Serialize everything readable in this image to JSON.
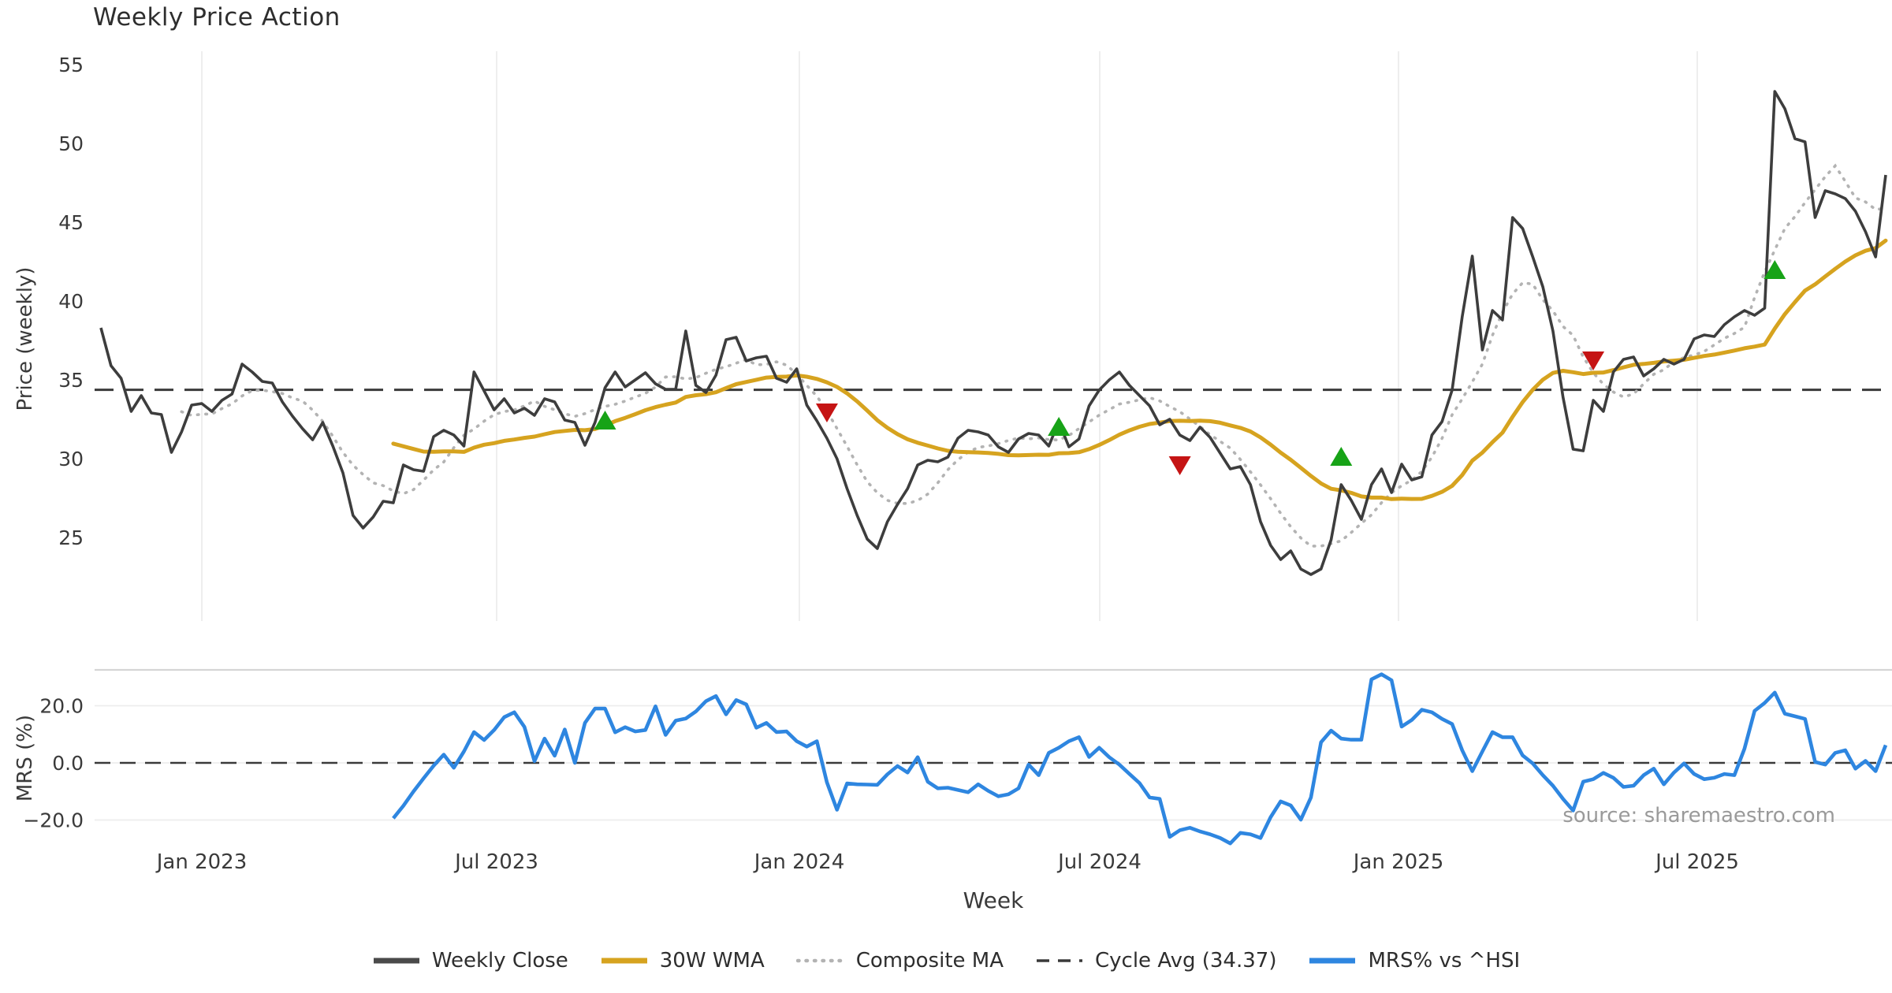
{
  "chart": {
    "title": "Weekly Price Action",
    "source": "source: sharemaestro.com",
    "xlabel": "Week",
    "legend": {
      "items": [
        {
          "label": "Weekly Close",
          "style": "solid",
          "color": "#4a4a4a"
        },
        {
          "label": "30W WMA",
          "style": "solid",
          "color": "#d6a31f"
        },
        {
          "label": "Composite MA",
          "style": "dotted",
          "color": "#b3b3b3"
        },
        {
          "label": "Cycle Avg (34.37)",
          "style": "dashed",
          "color": "#3a3a3a"
        },
        {
          "label": "MRS% vs ^HSI",
          "style": "solid",
          "color": "#2e86e0"
        }
      ]
    }
  },
  "chart_data": {
    "type": "line",
    "title": "Weekly Price Action",
    "xlabel": "Week",
    "x_tick_labels": [
      "Jan 2023",
      "Jul 2023",
      "Jan 2024",
      "Jul 2024",
      "Jan 2025",
      "Jul 2025"
    ],
    "colors": {
      "close": "#3d3d3d",
      "wma": "#d6a31f",
      "composite": "#b3b3b3",
      "cycle_avg": "#3a3a3a",
      "mrs": "#2e86e0",
      "buy_marker": "#17a317",
      "sell_marker": "#c51414",
      "grid": "#ececec",
      "spine": "#d5d5d5",
      "text": "#3a3a3a",
      "subtext": "#9a9a9a"
    },
    "panels": [
      {
        "name": "price",
        "ylabel": "Price (weekly)",
        "yticks": [
          55,
          50,
          45,
          40,
          35,
          30,
          25
        ],
        "ylim": [
          21.5,
          55.8
        ],
        "grid": "vertical-only",
        "cycle_avg": 34.37,
        "series": [
          {
            "name": "Weekly Close",
            "values": [
              38.3,
              35.9,
              35.1,
              33.0,
              34.0,
              32.9,
              32.8,
              30.4,
              31.7,
              33.4,
              33.5,
              33.0,
              33.7,
              34.1,
              36.0,
              35.5,
              34.9,
              34.8,
              33.6,
              32.7,
              31.9,
              31.2,
              32.3,
              30.8,
              29.1,
              26.4,
              25.6,
              26.3,
              27.3,
              27.2,
              29.6,
              29.3,
              29.2,
              31.4,
              31.8,
              31.5,
              30.8,
              35.5,
              34.3,
              33.1,
              33.8,
              32.9,
              33.2,
              32.75,
              33.8,
              33.6,
              32.45,
              32.3,
              30.85,
              32.3,
              34.5,
              35.5,
              34.55,
              35.0,
              35.45,
              34.75,
              34.4,
              34.4,
              38.1,
              34.65,
              34.2,
              35.3,
              37.55,
              37.7,
              36.2,
              36.4,
              36.5,
              35.1,
              34.85,
              35.7,
              33.4,
              32.4,
              31.3,
              30.0,
              28.1,
              26.4,
              24.9,
              24.3,
              26.0,
              27.1,
              28.1,
              29.6,
              29.9,
              29.8,
              30.1,
              31.3,
              31.8,
              31.7,
              31.5,
              30.75,
              30.4,
              31.25,
              31.6,
              31.5,
              30.8,
              32.35,
              30.75,
              31.25,
              33.35,
              34.35,
              35.0,
              35.5,
              34.65,
              34.0,
              33.35,
              32.15,
              32.5,
              31.5,
              31.15,
              32.0,
              31.35,
              30.35,
              29.35,
              29.5,
              28.35,
              26.0,
              24.5,
              23.6,
              24.15,
              23.0,
              22.65,
              23.0,
              24.85,
              28.35,
              27.35,
              26.15,
              28.35,
              29.35,
              27.85,
              29.65,
              28.65,
              28.85,
              31.5,
              32.35,
              34.35,
              39.0,
              42.85,
              36.9,
              39.4,
              38.8,
              45.3,
              44.6,
              42.8,
              40.9,
              38.1,
              33.9,
              30.6,
              30.5,
              33.7,
              33.0,
              35.5,
              36.3,
              36.45,
              35.25,
              35.7,
              36.3,
              36.0,
              36.3,
              37.6,
              37.85,
              37.75,
              38.5,
              39.0,
              39.4,
              39.1,
              39.55,
              53.3,
              52.2,
              50.3,
              50.1,
              45.3,
              47.0,
              46.8,
              46.5,
              45.7,
              44.4,
              42.8,
              48.0
            ]
          },
          {
            "name": "30W WMA",
            "derived": "30-week linearly weighted moving average of Weekly Close"
          },
          {
            "name": "Composite MA",
            "derived": "9-week smoothed mean of Weekly Close (2-week lag)"
          },
          {
            "name": "Cycle Avg",
            "constant": 34.37,
            "style": "dashed"
          }
        ],
        "markers": {
          "buy": [
            {
              "index": 50,
              "value": 32.35
            },
            {
              "index": 95,
              "value": 31.95
            },
            {
              "index": 123,
              "value": 30.05
            },
            {
              "index": 166,
              "value": 41.9
            }
          ],
          "sell": [
            {
              "index": 72,
              "value": 33.0
            },
            {
              "index": 107,
              "value": 29.65
            },
            {
              "index": 148,
              "value": 36.3
            }
          ]
        }
      },
      {
        "name": "mrs",
        "ylabel": "MRS (%)",
        "ytick_labels": [
          "20.0",
          "0.0",
          "-20.0"
        ],
        "ytick_values": [
          20,
          0,
          -20
        ],
        "ylim": [
          -32,
          32.5
        ],
        "zero_line": 0,
        "series": [
          {
            "name": "MRS% vs ^HSI",
            "start_index": 29,
            "values": [
              -19.4,
              -15.0,
              -10.0,
              -5.4,
              -1.0,
              2.9,
              -1.7,
              4.0,
              10.8,
              8.0,
              11.5,
              16.0,
              17.7,
              12.6,
              0.6,
              8.5,
              2.5,
              11.7,
              0.0,
              14.0,
              19.0,
              19.0,
              10.7,
              12.5,
              11.0,
              11.5,
              19.8,
              9.8,
              14.8,
              15.5,
              18.0,
              21.6,
              23.4,
              17.0,
              22.0,
              20.5,
              12.3,
              14.0,
              10.8,
              11.0,
              7.6,
              5.7,
              7.6,
              -6.8,
              -16.4,
              -7.2,
              -7.5,
              -7.6,
              -7.7,
              -4.0,
              -1.1,
              -3.4,
              2.0,
              -6.6,
              -8.9,
              -8.7,
              -9.5,
              -10.3,
              -7.5,
              -9.8,
              -11.7,
              -11.0,
              -8.9,
              -0.6,
              -4.3,
              3.5,
              5.3,
              7.6,
              9.0,
              2.1,
              5.3,
              2.0,
              -0.6,
              -3.9,
              -7.1,
              -12.1,
              -12.6,
              -25.9,
              -23.6,
              -22.7,
              -24.0,
              -25.0,
              -26.3,
              -28.2,
              -24.5,
              -25.0,
              -26.3,
              -19.0,
              -13.5,
              -14.9,
              -19.9,
              -12.1,
              7.2,
              11.3,
              8.5,
              8.1,
              8.1,
              29.2,
              31.0,
              28.9,
              12.7,
              15.0,
              18.6,
              17.7,
              15.4,
              13.6,
              4.4,
              -2.9,
              4.0,
              10.8,
              9.0,
              9.0,
              2.6,
              -0.2,
              -4.3,
              -8.0,
              -12.6,
              -16.7,
              -6.6,
              -5.7,
              -3.5,
              -5.2,
              -8.4,
              -8.0,
              -4.3,
              -2.0,
              -7.5,
              -3.4,
              -0.2,
              -3.9,
              -5.7,
              -5.2,
              -3.9,
              -4.3,
              5.0,
              18.2,
              21.0,
              24.6,
              17.2,
              16.3,
              15.4,
              0.3,
              -0.6,
              3.5,
              4.4,
              -2.0,
              0.7,
              -2.9,
              6.2
            ]
          }
        ]
      }
    ]
  }
}
